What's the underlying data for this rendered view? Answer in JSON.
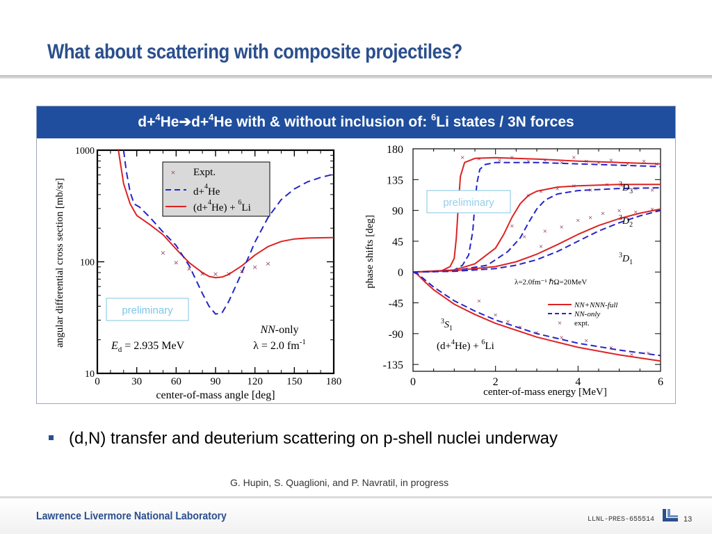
{
  "slide": {
    "title": "What about scattering with composite projectiles?",
    "banner": {
      "p1": "d+",
      "s1": "4",
      "p2": "He",
      "arrow": "➔",
      "p3": "d+",
      "s2": "4",
      "p4": "He with & without inclusion of: ",
      "s3": "6",
      "p5": "Li states / 3N forces"
    },
    "bullet": "(d,N) transfer and deuterium scattering on p-shell nuclei underway",
    "citation": "G. Hupin, S. Quaglioni, and  P. Navratil, in progress",
    "footer": {
      "lab": "Lawrence Livermore National Laboratory",
      "code": "LLNL-PRES-655514",
      "page": "13"
    },
    "colors": {
      "title": "#2b4f8d",
      "banner": "#1f4e9e",
      "red": "#dd2222",
      "blue": "#2424c8",
      "expt": "#7a1a3c",
      "preliminary": "#7fc6e6"
    }
  },
  "chart_data": [
    {
      "type": "line",
      "xlabel": "center-of-mass angle [deg]",
      "ylabel": "angular differential cross section [mb/sr]",
      "xlim": [
        0,
        180
      ],
      "ylim": [
        10,
        1000
      ],
      "yscale": "log",
      "xticks": [
        "0",
        "30",
        "60",
        "90",
        "120",
        "150",
        "180"
      ],
      "yticks": [
        "10",
        "100",
        "1000"
      ],
      "legend_position": "top",
      "legend": {
        "expt": "Expt.",
        "blue": {
          "t1": "d+",
          "s1": "4",
          "t2": "He"
        },
        "red": {
          "t1": "(d+",
          "s1": "4",
          "t2": "He) + ",
          "s2": "6",
          "t3": "Li"
        }
      },
      "series": [
        {
          "kind": "red",
          "style": "solid",
          "x": [
            15,
            20,
            25,
            30,
            40,
            50,
            60,
            70,
            80,
            85,
            90,
            95,
            100,
            110,
            120,
            130,
            140,
            150,
            160,
            170,
            180
          ],
          "y": [
            1200,
            500,
            330,
            260,
            215,
            175,
            130,
            98,
            80,
            74,
            72,
            73,
            77,
            92,
            115,
            137,
            152,
            160,
            163,
            164,
            165
          ]
        },
        {
          "kind": "blue",
          "style": "dashed",
          "x": [
            20,
            22,
            25,
            28,
            32,
            40,
            50,
            60,
            70,
            80,
            85,
            90,
            95,
            100,
            110,
            120,
            130,
            140,
            150,
            160,
            170,
            180
          ],
          "y": [
            1000,
            650,
            420,
            330,
            310,
            250,
            185,
            140,
            92,
            52,
            40,
            34,
            35,
            44,
            80,
            150,
            250,
            360,
            450,
            520,
            570,
            610
          ]
        },
        {
          "kind": "expt",
          "x": [
            50,
            60,
            70,
            80,
            90,
            100,
            110,
            120,
            130
          ],
          "y": [
            120,
            98,
            86,
            78,
            77,
            78,
            82,
            89,
            96
          ]
        }
      ],
      "annotations": {
        "nn": {
          "italic": "NN",
          "text": "-only"
        },
        "lambda": {
          "text": "λ = 2.0 fm",
          "sup": "-1"
        },
        "ed": {
          "italic": "E",
          "sub": "d",
          "text": " = 2.935 MeV"
        },
        "preliminary": "preliminary"
      }
    },
    {
      "type": "line",
      "xlabel": "center-of-mass energy [MeV]",
      "ylabel": "phase shifts [deg]",
      "xlim": [
        0,
        6
      ],
      "ylim": [
        -145,
        180
      ],
      "xticks": [
        "0",
        "2",
        "4",
        "6"
      ],
      "yticks": [
        "180",
        "135",
        "90",
        "45",
        "0",
        "-45",
        "-90",
        "-135"
      ],
      "legend_position": "bottom-right",
      "legend": {
        "red": "NN+NNN-full",
        "blue": "NN-only",
        "expt": "expt."
      },
      "labels": {
        "d3": {
          "sup": "3",
          "main": "D",
          "sub": "3"
        },
        "d2": {
          "sup": "3",
          "main": "D",
          "sub": "2"
        },
        "d1": {
          "sup": "3",
          "main": "D",
          "sub": "1"
        },
        "s1": {
          "sup": "3",
          "main": "S",
          "sub": "1"
        },
        "params": "λ=2.0fm⁻¹ ℏΩ=20MeV",
        "reaction": {
          "t1": "(d+",
          "s1": "4",
          "t2": "He) + ",
          "s2": "6",
          "t3": "Li"
        },
        "preliminary": "preliminary"
      },
      "series": [
        {
          "name": "3D3",
          "kind": "red",
          "style": "solid",
          "x": [
            0,
            0.4,
            0.7,
            0.9,
            1.0,
            1.05,
            1.1,
            1.15,
            1.25,
            1.5,
            2,
            3,
            4,
            5,
            6
          ],
          "y": [
            0,
            0.5,
            2,
            8,
            20,
            50,
            100,
            140,
            160,
            166,
            167,
            165,
            162,
            160,
            158
          ]
        },
        {
          "name": "3D3",
          "kind": "blue",
          "style": "dashed",
          "x": [
            0,
            0.5,
            1.0,
            1.2,
            1.35,
            1.45,
            1.5,
            1.55,
            1.62,
            1.75,
            2,
            3,
            4,
            5,
            6
          ],
          "y": [
            0,
            0.5,
            3,
            10,
            25,
            60,
            100,
            130,
            150,
            157,
            160,
            160,
            158,
            156,
            154
          ]
        },
        {
          "name": "3D2",
          "kind": "red",
          "style": "solid",
          "x": [
            0,
            1,
            1.5,
            2.0,
            2.2,
            2.4,
            2.6,
            2.8,
            3.0,
            3.5,
            4,
            5,
            6
          ],
          "y": [
            0,
            3,
            12,
            35,
            55,
            80,
            100,
            112,
            118,
            124,
            126,
            128,
            128
          ]
        },
        {
          "name": "3D2",
          "kind": "blue",
          "style": "dashed",
          "x": [
            0,
            1,
            1.8,
            2.3,
            2.6,
            2.8,
            3.0,
            3.2,
            3.5,
            4,
            5,
            6
          ],
          "y": [
            0,
            2,
            10,
            30,
            50,
            72,
            92,
            105,
            114,
            119,
            122,
            123
          ]
        },
        {
          "name": "3D1",
          "kind": "red",
          "style": "solid",
          "x": [
            0,
            1,
            2,
            2.5,
            3,
            3.5,
            4,
            4.5,
            5,
            5.5,
            6
          ],
          "y": [
            0,
            2,
            8,
            15,
            26,
            40,
            55,
            68,
            78,
            86,
            92
          ]
        },
        {
          "name": "3D1",
          "kind": "blue",
          "style": "dashed",
          "x": [
            0,
            1,
            2,
            2.5,
            3,
            3.5,
            4,
            4.5,
            5,
            5.5,
            6
          ],
          "y": [
            0,
            1,
            5,
            10,
            18,
            30,
            45,
            60,
            72,
            82,
            90
          ]
        },
        {
          "name": "3S1",
          "kind": "red",
          "style": "solid",
          "x": [
            0,
            0.1,
            0.3,
            0.5,
            1,
            1.5,
            2,
            3,
            4,
            5,
            6
          ],
          "y": [
            0,
            -3,
            -15,
            -26,
            -47,
            -62,
            -75,
            -95,
            -110,
            -121,
            -130
          ]
        },
        {
          "name": "3S1",
          "kind": "blue",
          "style": "dashed",
          "x": [
            0,
            0.1,
            0.3,
            0.5,
            1,
            1.5,
            2,
            3,
            4,
            5,
            6
          ],
          "y": [
            0,
            -2,
            -12,
            -22,
            -42,
            -57,
            -70,
            -90,
            -104,
            -114,
            -122
          ]
        },
        {
          "name": "expt",
          "kind": "expt",
          "x": [
            1.2,
            1.6,
            2.1,
            2.4,
            2.8,
            3.2,
            3.6,
            3.9,
            4.2,
            4.5,
            4.8,
            5.2,
            5.6,
            5.9,
            2.8,
            3.1,
            3.5,
            3.9,
            4.3,
            4.7,
            5.1,
            5.4,
            5.8,
            3.2,
            3.6,
            4.0,
            4.3,
            4.6,
            5.0,
            5.4,
            5.8,
            1.6,
            2.0,
            2.3,
            2.6,
            3.0,
            3.6,
            4.2,
            4.8,
            5.3,
            5.7,
            2.4,
            2.7,
            3.1
          ],
          "y": [
            168,
            166,
            164,
            168,
            162,
            164,
            160,
            168,
            162,
            160,
            164,
            158,
            162,
            158,
            112,
            118,
            122,
            126,
            120,
            128,
            126,
            122,
            120,
            60,
            66,
            76,
            80,
            86,
            90,
            88,
            92,
            -42,
            -62,
            -72,
            -80,
            -88,
            -95,
            -100,
            -110,
            -120,
            -118,
            68,
            52,
            38
          ]
        }
      ]
    }
  ]
}
